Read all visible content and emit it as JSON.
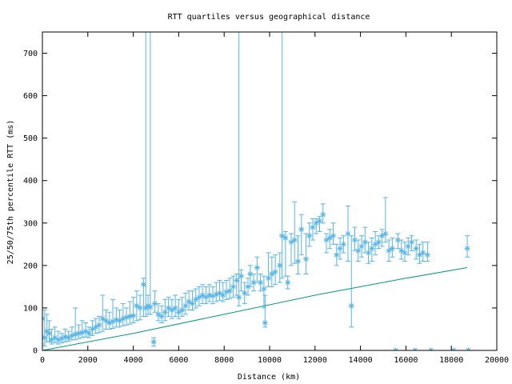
{
  "chart_data": {
    "type": "scatter",
    "title": "RTT quartiles versus geographical distance",
    "xlabel": "Distance (km)",
    "ylabel": "25/50/75th percentile RTT (ms)",
    "xlim": [
      0,
      20000
    ],
    "ylim": [
      0,
      750
    ],
    "xticks": [
      0,
      2000,
      4000,
      6000,
      8000,
      10000,
      12000,
      14000,
      16000,
      18000,
      20000
    ],
    "yticks": [
      0,
      100,
      200,
      300,
      400,
      500,
      600,
      700
    ],
    "grid": false,
    "legend": "none",
    "colors": {
      "points": "#56b4e9",
      "line": "#009e73",
      "axes": "#000000"
    },
    "series": [
      {
        "kind": "errorbars",
        "points": [
          [
            0,
            75,
            15,
            100
          ],
          [
            100,
            30,
            10,
            95
          ],
          [
            200,
            45,
            20,
            85
          ],
          [
            300,
            40,
            20,
            70
          ],
          [
            400,
            25,
            15,
            50
          ],
          [
            550,
            30,
            18,
            55
          ],
          [
            700,
            25,
            15,
            45
          ],
          [
            850,
            28,
            18,
            40
          ],
          [
            1000,
            32,
            20,
            50
          ],
          [
            1150,
            30,
            22,
            45
          ],
          [
            1300,
            35,
            25,
            55
          ],
          [
            1450,
            38,
            25,
            100
          ],
          [
            1600,
            40,
            28,
            60
          ],
          [
            1750,
            42,
            30,
            70
          ],
          [
            1900,
            45,
            32,
            65
          ],
          [
            2050,
            40,
            30,
            55
          ],
          [
            2200,
            50,
            35,
            70
          ],
          [
            2350,
            55,
            40,
            75
          ],
          [
            2500,
            60,
            42,
            80
          ],
          [
            2650,
            75,
            45,
            130
          ],
          [
            2800,
            70,
            50,
            95
          ],
          [
            2950,
            65,
            50,
            90
          ],
          [
            3100,
            68,
            52,
            120
          ],
          [
            3250,
            72,
            55,
            100
          ],
          [
            3400,
            70,
            55,
            95
          ],
          [
            3550,
            75,
            58,
            110
          ],
          [
            3700,
            78,
            60,
            100
          ],
          [
            3850,
            80,
            62,
            115
          ],
          [
            4000,
            82,
            65,
            125
          ],
          [
            4150,
            105,
            70,
            140
          ],
          [
            4300,
            100,
            72,
            130
          ],
          [
            4450,
            155,
            80,
            170
          ],
          [
            4550,
            100,
            80,
            750
          ],
          [
            4650,
            105,
            85,
            130
          ],
          [
            4750,
            102,
            85,
            750
          ],
          [
            4900,
            20,
            10,
            30
          ],
          [
            4950,
            110,
            90,
            140
          ],
          [
            5100,
            85,
            70,
            110
          ],
          [
            5250,
            80,
            65,
            105
          ],
          [
            5400,
            90,
            70,
            120
          ],
          [
            5550,
            100,
            80,
            125
          ],
          [
            5700,
            95,
            75,
            120
          ],
          [
            5850,
            100,
            80,
            130
          ],
          [
            6000,
            90,
            75,
            120
          ],
          [
            6150,
            95,
            80,
            125
          ],
          [
            6300,
            105,
            85,
            135
          ],
          [
            6450,
            115,
            95,
            140
          ],
          [
            6600,
            110,
            95,
            140
          ],
          [
            6750,
            120,
            100,
            145
          ],
          [
            6900,
            125,
            105,
            150
          ],
          [
            7050,
            130,
            110,
            155
          ],
          [
            7200,
            125,
            110,
            150
          ],
          [
            7350,
            130,
            115,
            155
          ],
          [
            7500,
            128,
            110,
            150
          ],
          [
            7650,
            132,
            115,
            160
          ],
          [
            7800,
            135,
            118,
            165
          ],
          [
            7950,
            130,
            115,
            160
          ],
          [
            8100,
            138,
            120,
            165
          ],
          [
            8250,
            140,
            122,
            170
          ],
          [
            8400,
            150,
            125,
            175
          ],
          [
            8550,
            165,
            130,
            180
          ],
          [
            8650,
            125,
            105,
            750
          ],
          [
            8750,
            175,
            140,
            190
          ],
          [
            8900,
            135,
            110,
            160
          ],
          [
            9050,
            150,
            130,
            170
          ],
          [
            9150,
            180,
            150,
            200
          ],
          [
            9300,
            160,
            140,
            180
          ],
          [
            9450,
            195,
            160,
            220
          ],
          [
            9600,
            160,
            140,
            180
          ],
          [
            9750,
            145,
            100,
            175
          ],
          [
            9800,
            65,
            55,
            130
          ],
          [
            9950,
            170,
            150,
            230
          ],
          [
            10100,
            180,
            150,
            220
          ],
          [
            10250,
            185,
            155,
            225
          ],
          [
            10450,
            200,
            160,
            230
          ],
          [
            10550,
            270,
            170,
            750
          ],
          [
            10700,
            265,
            175,
            280
          ],
          [
            10800,
            160,
            145,
            175
          ],
          [
            10950,
            255,
            200,
            275
          ],
          [
            11100,
            260,
            205,
            350
          ],
          [
            11250,
            210,
            180,
            270
          ],
          [
            11400,
            285,
            225,
            320
          ],
          [
            11600,
            215,
            180,
            275
          ],
          [
            11750,
            270,
            245,
            300
          ],
          [
            11900,
            290,
            260,
            310
          ],
          [
            12050,
            300,
            275,
            310
          ],
          [
            12200,
            305,
            280,
            315
          ],
          [
            12350,
            320,
            300,
            345
          ],
          [
            12500,
            260,
            230,
            275
          ],
          [
            12650,
            265,
            240,
            285
          ],
          [
            12800,
            270,
            250,
            300
          ],
          [
            12950,
            225,
            200,
            250
          ],
          [
            13100,
            240,
            215,
            265
          ],
          [
            13250,
            250,
            230,
            270
          ],
          [
            13450,
            275,
            210,
            340
          ],
          [
            13600,
            105,
            55,
            270
          ],
          [
            13750,
            260,
            235,
            290
          ],
          [
            13900,
            235,
            210,
            260
          ],
          [
            14050,
            245,
            220,
            270
          ],
          [
            14200,
            255,
            230,
            290
          ],
          [
            14350,
            230,
            205,
            255
          ],
          [
            14500,
            240,
            210,
            265
          ],
          [
            14650,
            250,
            225,
            280
          ],
          [
            14800,
            255,
            240,
            270
          ],
          [
            14950,
            270,
            245,
            285
          ],
          [
            15100,
            275,
            255,
            360
          ],
          [
            15250,
            235,
            210,
            260
          ],
          [
            15400,
            240,
            220,
            265
          ],
          [
            15550,
            0,
            0,
            0
          ],
          [
            15650,
            260,
            240,
            275
          ],
          [
            15800,
            235,
            215,
            260
          ],
          [
            15950,
            230,
            210,
            255
          ],
          [
            16100,
            245,
            225,
            265
          ],
          [
            16250,
            255,
            235,
            270
          ],
          [
            16400,
            0,
            0,
            0
          ],
          [
            16450,
            240,
            215,
            260
          ],
          [
            16600,
            225,
            205,
            250
          ],
          [
            16750,
            230,
            210,
            255
          ],
          [
            16950,
            225,
            210,
            255
          ],
          [
            17100,
            0,
            0,
            0
          ],
          [
            18100,
            0,
            0,
            0
          ],
          [
            18700,
            240,
            220,
            270
          ],
          [
            18750,
            0,
            0,
            0
          ]
        ]
      },
      {
        "kind": "line",
        "x": [
          0,
          4000,
          8000,
          12000,
          16000,
          18700
        ],
        "y": [
          0,
          40,
          85,
          130,
          170,
          195
        ]
      }
    ]
  }
}
